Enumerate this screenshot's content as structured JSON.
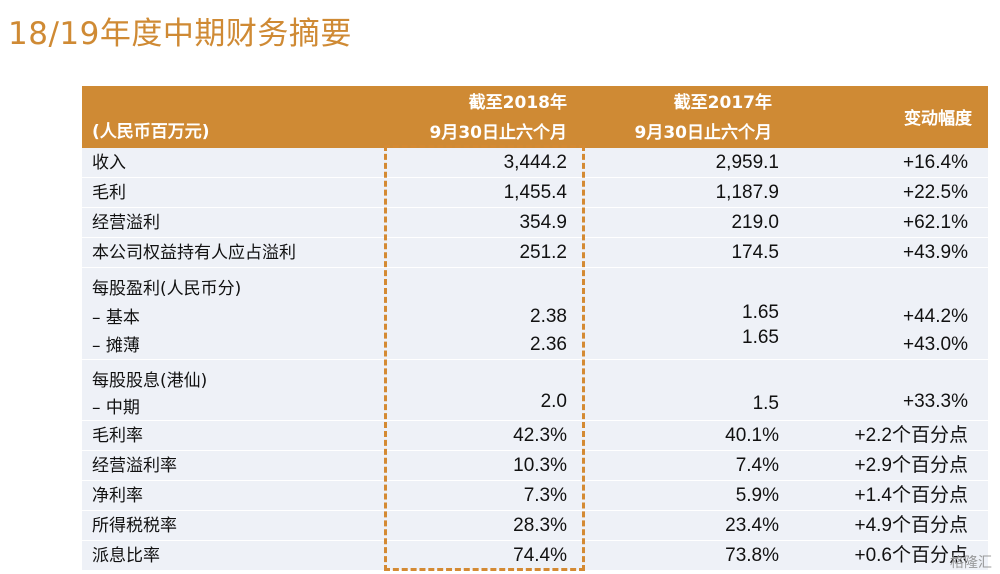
{
  "title": "18/19年度中期财务摘要",
  "header": {
    "unit": "(人民币百万元)",
    "col2018_line1": "截至2018年",
    "col2018_line2": "9月30日止六个月",
    "col2017_line1": "截至2017年",
    "col2017_line2": "9月30日止六个月",
    "change": "变动幅度"
  },
  "rows": {
    "revenue": {
      "label": "收入",
      "v2018": "3,444.2",
      "v2017": "2,959.1",
      "change": "+16.4%"
    },
    "gross_profit": {
      "label": "毛利",
      "v2018": "1,455.4",
      "v2017": "1,187.9",
      "change": "+22.5%"
    },
    "operating_profit": {
      "label": "经营溢利",
      "v2018": "354.9",
      "v2017": "219.0",
      "change": "+62.1%"
    },
    "attributable_profit": {
      "label": "本公司权益持有人应占溢利",
      "v2018": "251.2",
      "v2017": "174.5",
      "change": "+43.9%"
    },
    "eps": {
      "label": "每股盈利(人民币分)",
      "basic_label": "–  基本",
      "basic_2018": "2.38",
      "basic_2017": "1.65",
      "basic_change": "+44.2%",
      "diluted_label": "–  摊薄",
      "diluted_2018": "2.36",
      "diluted_2017": "1.65",
      "diluted_change": "+43.0%"
    },
    "dps": {
      "label": "每股股息(港仙)",
      "interim_label": "–  中期",
      "interim_2018": "2.0",
      "interim_2017": "1.5",
      "interim_change": "+33.3%"
    },
    "gross_margin": {
      "label": "毛利率",
      "v2018": "42.3%",
      "v2017": "40.1%",
      "change": "+2.2个百分点"
    },
    "operating_margin": {
      "label": "经营溢利率",
      "v2018": "10.3%",
      "v2017": "7.4%",
      "change": "+2.9个百分点"
    },
    "net_margin": {
      "label": "净利率",
      "v2018": "7.3%",
      "v2017": "5.9%",
      "change": "+1.4个百分点"
    },
    "tax_rate": {
      "label": "所得税税率",
      "v2018": "28.3%",
      "v2017": "23.4%",
      "change": "+4.9个百分点"
    },
    "payout_ratio": {
      "label": "派息比率",
      "v2018": "74.4%",
      "v2017": "73.8%",
      "change": "+0.6个百分点"
    }
  },
  "watermark": "格隆汇",
  "colors": {
    "accent": "#cf8a34",
    "row_bg": "#eef1f7"
  }
}
